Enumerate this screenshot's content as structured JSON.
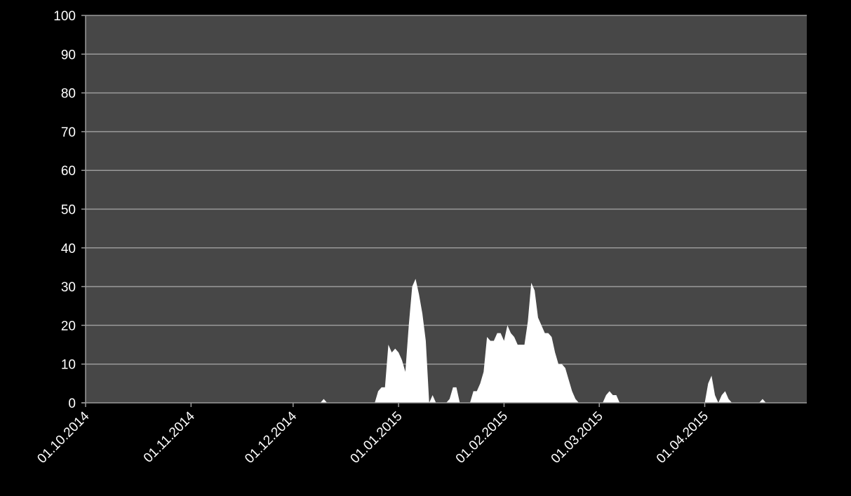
{
  "chart_data": {
    "type": "area",
    "title": "",
    "xlabel": "",
    "ylabel": "",
    "x_range": [
      "2014-10-01",
      "2015-04-30"
    ],
    "ylim": [
      0,
      100
    ],
    "y_ticks": [
      "0",
      "10",
      "20",
      "30",
      "40",
      "50",
      "60",
      "70",
      "80",
      "90",
      "100"
    ],
    "x_ticks": [
      {
        "date": "2014-10-01",
        "label": "01.10.2014"
      },
      {
        "date": "2014-11-01",
        "label": "01.11.2014"
      },
      {
        "date": "2014-12-01",
        "label": "01.12.2014"
      },
      {
        "date": "2015-01-01",
        "label": "01.01.2015"
      },
      {
        "date": "2015-02-01",
        "label": "01.02.2015"
      },
      {
        "date": "2015-03-01",
        "label": "01.03.2015"
      },
      {
        "date": "2015-04-01",
        "label": "01.04.2015"
      }
    ],
    "grid": true,
    "legend": "none",
    "colors": {
      "background": "#000000",
      "plot_area": "#474747",
      "gridline": "#9a9a9a",
      "area_fill": "#ffffff",
      "text": "#ffffff"
    },
    "series": [
      {
        "points": [
          [
            "2014-12-09",
            0
          ],
          [
            "2014-12-10",
            1
          ],
          [
            "2014-12-11",
            0
          ],
          [
            "2014-12-25",
            0
          ],
          [
            "2014-12-26",
            3
          ],
          [
            "2014-12-27",
            4
          ],
          [
            "2014-12-28",
            4
          ],
          [
            "2014-12-29",
            15
          ],
          [
            "2014-12-30",
            13
          ],
          [
            "2014-12-31",
            14
          ],
          [
            "2015-01-01",
            13
          ],
          [
            "2015-01-02",
            11
          ],
          [
            "2015-01-03",
            8
          ],
          [
            "2015-01-04",
            20
          ],
          [
            "2015-01-05",
            30
          ],
          [
            "2015-01-06",
            32
          ],
          [
            "2015-01-07",
            28
          ],
          [
            "2015-01-08",
            23
          ],
          [
            "2015-01-09",
            16
          ],
          [
            "2015-01-10",
            0
          ],
          [
            "2015-01-11",
            2
          ],
          [
            "2015-01-12",
            0
          ],
          [
            "2015-01-15",
            0
          ],
          [
            "2015-01-16",
            1
          ],
          [
            "2015-01-17",
            4
          ],
          [
            "2015-01-18",
            4
          ],
          [
            "2015-01-19",
            0
          ],
          [
            "2015-01-22",
            0
          ],
          [
            "2015-01-23",
            3
          ],
          [
            "2015-01-24",
            3
          ],
          [
            "2015-01-25",
            5
          ],
          [
            "2015-01-26",
            8
          ],
          [
            "2015-01-27",
            17
          ],
          [
            "2015-01-28",
            16
          ],
          [
            "2015-01-29",
            16
          ],
          [
            "2015-01-30",
            18
          ],
          [
            "2015-01-31",
            18
          ],
          [
            "2015-02-01",
            16
          ],
          [
            "2015-02-02",
            20
          ],
          [
            "2015-02-03",
            18
          ],
          [
            "2015-02-04",
            17
          ],
          [
            "2015-02-05",
            15
          ],
          [
            "2015-02-06",
            15
          ],
          [
            "2015-02-07",
            15
          ],
          [
            "2015-02-08",
            21
          ],
          [
            "2015-02-09",
            31
          ],
          [
            "2015-02-10",
            29
          ],
          [
            "2015-02-11",
            22
          ],
          [
            "2015-02-12",
            20
          ],
          [
            "2015-02-13",
            18
          ],
          [
            "2015-02-14",
            18
          ],
          [
            "2015-02-15",
            17
          ],
          [
            "2015-02-16",
            13
          ],
          [
            "2015-02-17",
            10
          ],
          [
            "2015-02-18",
            10
          ],
          [
            "2015-02-19",
            9
          ],
          [
            "2015-02-20",
            6
          ],
          [
            "2015-02-21",
            3
          ],
          [
            "2015-02-22",
            1
          ],
          [
            "2015-02-23",
            0
          ],
          [
            "2015-03-02",
            0
          ],
          [
            "2015-03-03",
            2
          ],
          [
            "2015-03-04",
            3
          ],
          [
            "2015-03-05",
            2
          ],
          [
            "2015-03-06",
            2
          ],
          [
            "2015-03-07",
            0
          ],
          [
            "2015-04-01",
            0
          ],
          [
            "2015-04-02",
            5
          ],
          [
            "2015-04-03",
            7
          ],
          [
            "2015-04-04",
            2
          ],
          [
            "2015-04-05",
            0
          ],
          [
            "2015-04-06",
            2
          ],
          [
            "2015-04-07",
            3
          ],
          [
            "2015-04-08",
            1
          ],
          [
            "2015-04-09",
            0
          ],
          [
            "2015-04-17",
            0
          ],
          [
            "2015-04-18",
            1
          ],
          [
            "2015-04-19",
            0
          ]
        ]
      }
    ]
  }
}
